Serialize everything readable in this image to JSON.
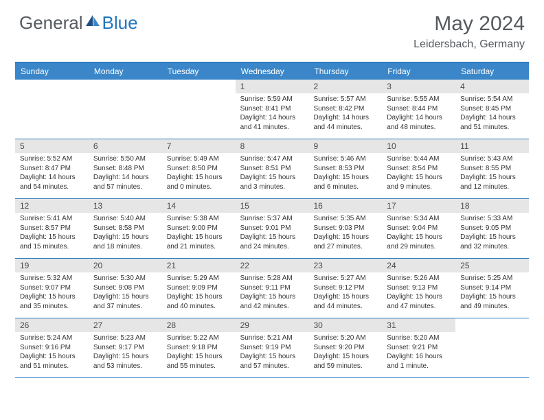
{
  "brand": {
    "general": "General",
    "blue": "Blue"
  },
  "title": {
    "month": "May 2024",
    "location": "Leidersbach, Germany"
  },
  "colors": {
    "header_bg": "#3a86c8",
    "header_border": "#2f7bbf",
    "daynum_bg": "#e6e6e6",
    "text": "#555a5f",
    "blue_text": "#2176bd"
  },
  "day_names": [
    "Sunday",
    "Monday",
    "Tuesday",
    "Wednesday",
    "Thursday",
    "Friday",
    "Saturday"
  ],
  "weeks": [
    [
      {
        "n": "",
        "sr": "",
        "ss": "",
        "dl": ""
      },
      {
        "n": "",
        "sr": "",
        "ss": "",
        "dl": ""
      },
      {
        "n": "",
        "sr": "",
        "ss": "",
        "dl": ""
      },
      {
        "n": "1",
        "sr": "Sunrise: 5:59 AM",
        "ss": "Sunset: 8:41 PM",
        "dl": "Daylight: 14 hours and 41 minutes."
      },
      {
        "n": "2",
        "sr": "Sunrise: 5:57 AM",
        "ss": "Sunset: 8:42 PM",
        "dl": "Daylight: 14 hours and 44 minutes."
      },
      {
        "n": "3",
        "sr": "Sunrise: 5:55 AM",
        "ss": "Sunset: 8:44 PM",
        "dl": "Daylight: 14 hours and 48 minutes."
      },
      {
        "n": "4",
        "sr": "Sunrise: 5:54 AM",
        "ss": "Sunset: 8:45 PM",
        "dl": "Daylight: 14 hours and 51 minutes."
      }
    ],
    [
      {
        "n": "5",
        "sr": "Sunrise: 5:52 AM",
        "ss": "Sunset: 8:47 PM",
        "dl": "Daylight: 14 hours and 54 minutes."
      },
      {
        "n": "6",
        "sr": "Sunrise: 5:50 AM",
        "ss": "Sunset: 8:48 PM",
        "dl": "Daylight: 14 hours and 57 minutes."
      },
      {
        "n": "7",
        "sr": "Sunrise: 5:49 AM",
        "ss": "Sunset: 8:50 PM",
        "dl": "Daylight: 15 hours and 0 minutes."
      },
      {
        "n": "8",
        "sr": "Sunrise: 5:47 AM",
        "ss": "Sunset: 8:51 PM",
        "dl": "Daylight: 15 hours and 3 minutes."
      },
      {
        "n": "9",
        "sr": "Sunrise: 5:46 AM",
        "ss": "Sunset: 8:53 PM",
        "dl": "Daylight: 15 hours and 6 minutes."
      },
      {
        "n": "10",
        "sr": "Sunrise: 5:44 AM",
        "ss": "Sunset: 8:54 PM",
        "dl": "Daylight: 15 hours and 9 minutes."
      },
      {
        "n": "11",
        "sr": "Sunrise: 5:43 AM",
        "ss": "Sunset: 8:55 PM",
        "dl": "Daylight: 15 hours and 12 minutes."
      }
    ],
    [
      {
        "n": "12",
        "sr": "Sunrise: 5:41 AM",
        "ss": "Sunset: 8:57 PM",
        "dl": "Daylight: 15 hours and 15 minutes."
      },
      {
        "n": "13",
        "sr": "Sunrise: 5:40 AM",
        "ss": "Sunset: 8:58 PM",
        "dl": "Daylight: 15 hours and 18 minutes."
      },
      {
        "n": "14",
        "sr": "Sunrise: 5:38 AM",
        "ss": "Sunset: 9:00 PM",
        "dl": "Daylight: 15 hours and 21 minutes."
      },
      {
        "n": "15",
        "sr": "Sunrise: 5:37 AM",
        "ss": "Sunset: 9:01 PM",
        "dl": "Daylight: 15 hours and 24 minutes."
      },
      {
        "n": "16",
        "sr": "Sunrise: 5:35 AM",
        "ss": "Sunset: 9:03 PM",
        "dl": "Daylight: 15 hours and 27 minutes."
      },
      {
        "n": "17",
        "sr": "Sunrise: 5:34 AM",
        "ss": "Sunset: 9:04 PM",
        "dl": "Daylight: 15 hours and 29 minutes."
      },
      {
        "n": "18",
        "sr": "Sunrise: 5:33 AM",
        "ss": "Sunset: 9:05 PM",
        "dl": "Daylight: 15 hours and 32 minutes."
      }
    ],
    [
      {
        "n": "19",
        "sr": "Sunrise: 5:32 AM",
        "ss": "Sunset: 9:07 PM",
        "dl": "Daylight: 15 hours and 35 minutes."
      },
      {
        "n": "20",
        "sr": "Sunrise: 5:30 AM",
        "ss": "Sunset: 9:08 PM",
        "dl": "Daylight: 15 hours and 37 minutes."
      },
      {
        "n": "21",
        "sr": "Sunrise: 5:29 AM",
        "ss": "Sunset: 9:09 PM",
        "dl": "Daylight: 15 hours and 40 minutes."
      },
      {
        "n": "22",
        "sr": "Sunrise: 5:28 AM",
        "ss": "Sunset: 9:11 PM",
        "dl": "Daylight: 15 hours and 42 minutes."
      },
      {
        "n": "23",
        "sr": "Sunrise: 5:27 AM",
        "ss": "Sunset: 9:12 PM",
        "dl": "Daylight: 15 hours and 44 minutes."
      },
      {
        "n": "24",
        "sr": "Sunrise: 5:26 AM",
        "ss": "Sunset: 9:13 PM",
        "dl": "Daylight: 15 hours and 47 minutes."
      },
      {
        "n": "25",
        "sr": "Sunrise: 5:25 AM",
        "ss": "Sunset: 9:14 PM",
        "dl": "Daylight: 15 hours and 49 minutes."
      }
    ],
    [
      {
        "n": "26",
        "sr": "Sunrise: 5:24 AM",
        "ss": "Sunset: 9:16 PM",
        "dl": "Daylight: 15 hours and 51 minutes."
      },
      {
        "n": "27",
        "sr": "Sunrise: 5:23 AM",
        "ss": "Sunset: 9:17 PM",
        "dl": "Daylight: 15 hours and 53 minutes."
      },
      {
        "n": "28",
        "sr": "Sunrise: 5:22 AM",
        "ss": "Sunset: 9:18 PM",
        "dl": "Daylight: 15 hours and 55 minutes."
      },
      {
        "n": "29",
        "sr": "Sunrise: 5:21 AM",
        "ss": "Sunset: 9:19 PM",
        "dl": "Daylight: 15 hours and 57 minutes."
      },
      {
        "n": "30",
        "sr": "Sunrise: 5:20 AM",
        "ss": "Sunset: 9:20 PM",
        "dl": "Daylight: 15 hours and 59 minutes."
      },
      {
        "n": "31",
        "sr": "Sunrise: 5:20 AM",
        "ss": "Sunset: 9:21 PM",
        "dl": "Daylight: 16 hours and 1 minute."
      },
      {
        "n": "",
        "sr": "",
        "ss": "",
        "dl": ""
      }
    ]
  ]
}
